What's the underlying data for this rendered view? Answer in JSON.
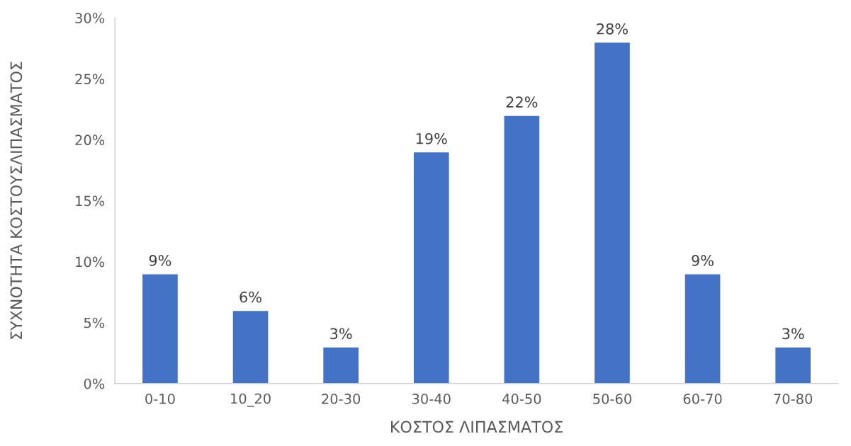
{
  "chart_data": {
    "type": "bar",
    "xlabel": "ΚΟΣΤΟΣ ΛΙΠΑΣΜΑΤΟΣ",
    "ylabel": "ΣΥΧΝΟΤΗΤΑ ΚΟΣΤΟΥΣΛΙΠΑΣΜΑΤΟΣ",
    "categories": [
      "0-10",
      "10_20",
      "20-30",
      "30-40",
      "40-50",
      "50-60",
      "60-70",
      "70-80"
    ],
    "values": [
      9,
      6,
      3,
      19,
      22,
      28,
      9,
      3
    ],
    "value_labels": [
      "9%",
      "6%",
      "3%",
      "19%",
      "22%",
      "28%",
      "9%",
      "3%"
    ],
    "color": "#4472c4",
    "ylim": [
      0,
      30
    ],
    "yticks": [
      {
        "value": 0,
        "label": "0%"
      },
      {
        "value": 5,
        "label": "5%"
      },
      {
        "value": 10,
        "label": "10%"
      },
      {
        "value": 15,
        "label": "15%"
      },
      {
        "value": 20,
        "label": "20%"
      },
      {
        "value": 25,
        "label": "25%"
      },
      {
        "value": 30,
        "label": "30%"
      }
    ],
    "grid": false,
    "legend": false
  }
}
